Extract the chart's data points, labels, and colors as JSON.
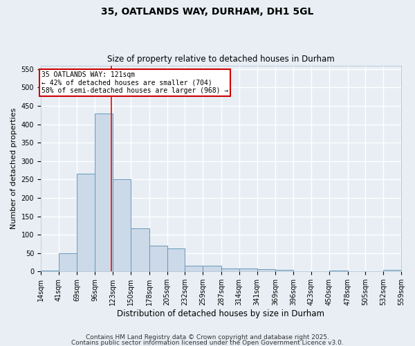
{
  "title1": "35, OATLANDS WAY, DURHAM, DH1 5GL",
  "title2": "Size of property relative to detached houses in Durham",
  "xlabel": "Distribution of detached houses by size in Durham",
  "ylabel": "Number of detached properties",
  "bin_edges": [
    14,
    41,
    69,
    96,
    123,
    150,
    178,
    205,
    232,
    259,
    287,
    314,
    341,
    369,
    396,
    423,
    450,
    478,
    505,
    532,
    559
  ],
  "bar_heights": [
    3,
    50,
    265,
    430,
    250,
    118,
    70,
    63,
    15,
    15,
    8,
    8,
    7,
    5,
    1,
    0,
    3,
    1,
    1,
    5
  ],
  "bar_facecolor": "#ccd9e8",
  "bar_edgecolor": "#6699bb",
  "red_line_x": 121,
  "annotation_text": "35 OATLANDS WAY: 121sqm\n← 42% of detached houses are smaller (704)\n58% of semi-detached houses are larger (968) →",
  "annotation_box_color": "#ffffff",
  "annotation_box_edgecolor": "#cc0000",
  "ylim": [
    0,
    560
  ],
  "yticks": [
    0,
    50,
    100,
    150,
    200,
    250,
    300,
    350,
    400,
    450,
    500,
    550
  ],
  "footer1": "Contains HM Land Registry data © Crown copyright and database right 2025.",
  "footer2": "Contains public sector information licensed under the Open Government Licence v3.0.",
  "background_color": "#e8eef4",
  "grid_color": "#ffffff",
  "title1_fontsize": 10,
  "title2_fontsize": 8.5,
  "xlabel_fontsize": 8.5,
  "ylabel_fontsize": 8,
  "tick_fontsize": 7,
  "footer_fontsize": 6.5
}
